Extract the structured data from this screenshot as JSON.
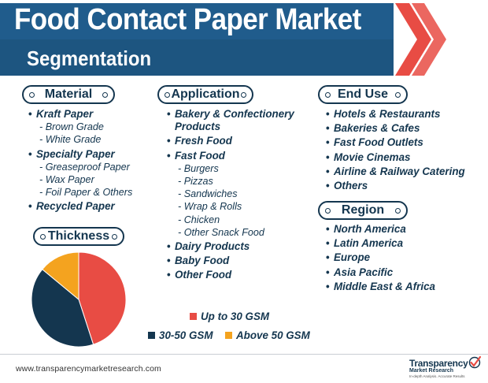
{
  "header": {
    "title": "Food Contact Paper Market",
    "subtitle": "Segmentation"
  },
  "colors": {
    "navy": "#14364f",
    "red": "#e84c44",
    "orange": "#f4a31f",
    "banner": "#1d5580"
  },
  "material": {
    "heading": "Material",
    "items": [
      {
        "label": "Kraft Paper",
        "level": "main"
      },
      {
        "label": "- Brown Grade",
        "level": "sub"
      },
      {
        "label": "- White Grade",
        "level": "sub"
      },
      {
        "label": "Specialty Paper",
        "level": "main"
      },
      {
        "label": "- Greaseproof Paper",
        "level": "sub"
      },
      {
        "label": "- Wax Paper",
        "level": "sub"
      },
      {
        "label": "- Foil Paper & Others",
        "level": "sub"
      },
      {
        "label": "Recycled Paper",
        "level": "main"
      }
    ]
  },
  "application": {
    "heading": "Application",
    "items": [
      {
        "label": "Bakery & Confectionery",
        "label2": "Products",
        "level": "main"
      },
      {
        "label": "Fresh Food",
        "level": "main"
      },
      {
        "label": "Fast Food",
        "level": "main"
      },
      {
        "label": "- Burgers",
        "level": "sub"
      },
      {
        "label": "- Pizzas",
        "level": "sub"
      },
      {
        "label": "- Sandwiches",
        "level": "sub"
      },
      {
        "label": "- Wrap & Rolls",
        "level": "sub"
      },
      {
        "label": "- Chicken",
        "level": "sub"
      },
      {
        "label": "- Other Snack Food",
        "level": "sub"
      },
      {
        "label": "Dairy Products",
        "level": "main"
      },
      {
        "label": "Baby Food",
        "level": "main"
      },
      {
        "label": "Other Food",
        "level": "main"
      }
    ]
  },
  "end_use": {
    "heading": "End Use",
    "items": [
      {
        "label": "Hotels & Restaurants",
        "level": "main"
      },
      {
        "label": "Bakeries & Cafes",
        "level": "main"
      },
      {
        "label": "Fast Food Outlets",
        "level": "main"
      },
      {
        "label": "Movie Cinemas",
        "level": "main"
      },
      {
        "label": "Airline & Railway Catering",
        "level": "main"
      },
      {
        "label": "Others",
        "level": "main"
      }
    ]
  },
  "region": {
    "heading": "Region",
    "items": [
      {
        "label": "North America",
        "level": "main"
      },
      {
        "label": "Latin America",
        "level": "main"
      },
      {
        "label": "Europe",
        "level": "main"
      },
      {
        "label": "Asia Pacific",
        "level": "main"
      },
      {
        "label": "Middle East & Africa",
        "level": "main"
      }
    ]
  },
  "thickness": {
    "heading": "Thickness",
    "slices": [
      {
        "label": "Up to 30 GSM",
        "share": 0.45,
        "color": "#e84c44"
      },
      {
        "label": "30-50 GSM",
        "share": 0.41,
        "color": "#14364f"
      },
      {
        "label": "Above 50 GSM",
        "share": 0.14,
        "color": "#f4a31f"
      }
    ]
  },
  "footer": {
    "url": "www.transparencymarketresearch.com",
    "logo_name": "Transparency",
    "logo_name2": "Market Research",
    "logo_tagline": "In-depth Analysis. Accurate Results"
  }
}
